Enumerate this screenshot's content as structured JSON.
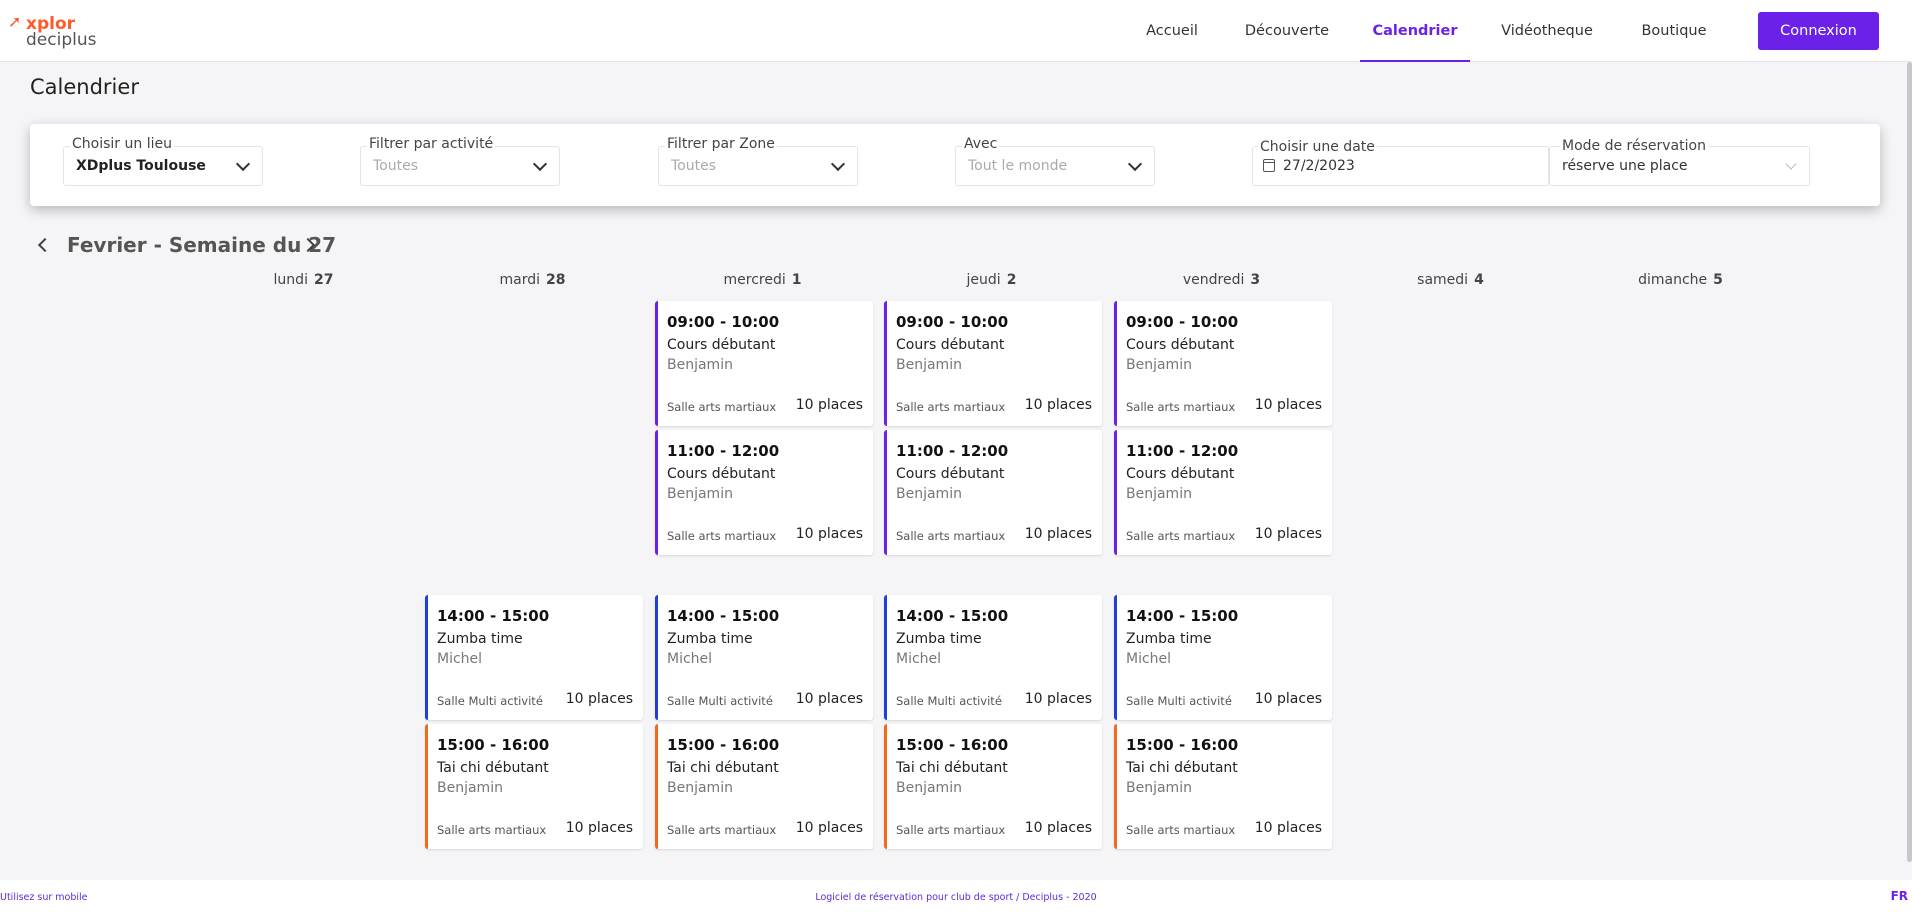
{
  "brand": {
    "top": "xplor",
    "bottom": "deciplus",
    "accent": "#6b21e8",
    "logo_color": "#ff5a2a"
  },
  "nav": {
    "items": [
      {
        "label": "Accueil",
        "active": false
      },
      {
        "label": "Découverte",
        "active": false
      },
      {
        "label": "Calendrier",
        "active": true
      },
      {
        "label": "Vidéotheque",
        "active": false
      },
      {
        "label": "Boutique",
        "active": false
      }
    ],
    "login": "Connexion"
  },
  "page_title": "Calendrier",
  "filters": {
    "lieu": {
      "label": "Choisir un lieu",
      "value": "XDplus Toulouse"
    },
    "activite": {
      "label": "Filtrer par activité",
      "value": "Toutes"
    },
    "zone": {
      "label": "Filtrer par Zone",
      "value": "Toutes"
    },
    "avec": {
      "label": "Avec",
      "value": "Tout le monde"
    },
    "date": {
      "label": "Choisir une date",
      "value": "27/2/2023"
    },
    "mode": {
      "label": "Mode de réservation",
      "value": "réserve une place"
    }
  },
  "week": {
    "title": "Fevrier - Semaine du 27",
    "days": [
      {
        "name": "lundi",
        "num": "27"
      },
      {
        "name": "mardi",
        "num": "28"
      },
      {
        "name": "mercredi",
        "num": "1"
      },
      {
        "name": "jeudi",
        "num": "2"
      },
      {
        "name": "vendredi",
        "num": "3"
      },
      {
        "name": "samedi",
        "num": "4"
      },
      {
        "name": "dimanche",
        "num": "5"
      }
    ]
  },
  "activity_colors": {
    "Cours débutant": "#6b21e8",
    "Zumba time": "#1f3fd6",
    "Tai chi débutant": "#f26a1b"
  },
  "events": {
    "mercredi": [
      {
        "time": "09:00 - 10:00",
        "name": "Cours débutant",
        "coach": "Benjamin",
        "room": "Salle arts martiaux",
        "places": "10 places"
      },
      {
        "time": "11:00 - 12:00",
        "name": "Cours débutant",
        "coach": "Benjamin",
        "room": "Salle arts martiaux",
        "places": "10 places"
      },
      {
        "time": "14:00 - 15:00",
        "name": "Zumba time",
        "coach": "Michel",
        "room": "Salle Multi activité",
        "places": "10 places"
      },
      {
        "time": "15:00 - 16:00",
        "name": "Tai chi débutant",
        "coach": "Benjamin",
        "room": "Salle arts martiaux",
        "places": "10 places"
      }
    ],
    "jeudi": [
      {
        "time": "09:00 - 10:00",
        "name": "Cours débutant",
        "coach": "Benjamin",
        "room": "Salle arts martiaux",
        "places": "10 places"
      },
      {
        "time": "11:00 - 12:00",
        "name": "Cours débutant",
        "coach": "Benjamin",
        "room": "Salle arts martiaux",
        "places": "10 places"
      },
      {
        "time": "14:00 - 15:00",
        "name": "Zumba time",
        "coach": "Michel",
        "room": "Salle Multi activité",
        "places": "10 places"
      },
      {
        "time": "15:00 - 16:00",
        "name": "Tai chi débutant",
        "coach": "Benjamin",
        "room": "Salle arts martiaux",
        "places": "10 places"
      }
    ],
    "vendredi": [
      {
        "time": "09:00 - 10:00",
        "name": "Cours débutant",
        "coach": "Benjamin",
        "room": "Salle arts martiaux",
        "places": "10 places"
      },
      {
        "time": "11:00 - 12:00",
        "name": "Cours débutant",
        "coach": "Benjamin",
        "room": "Salle arts martiaux",
        "places": "10 places"
      },
      {
        "time": "14:00 - 15:00",
        "name": "Zumba time",
        "coach": "Michel",
        "room": "Salle Multi activité",
        "places": "10 places"
      },
      {
        "time": "15:00 - 16:00",
        "name": "Tai chi débutant",
        "coach": "Benjamin",
        "room": "Salle arts martiaux",
        "places": "10 places"
      }
    ],
    "mardi": [
      {
        "time": "14:00 - 15:00",
        "name": "Zumba time",
        "coach": "Michel",
        "room": "Salle Multi activité",
        "places": "10 places"
      },
      {
        "time": "15:00 - 16:00",
        "name": "Tai chi débutant",
        "coach": "Benjamin",
        "room": "Salle arts martiaux",
        "places": "10 places"
      }
    ]
  },
  "footer": {
    "mobile": "Utilisez sur mobile",
    "software": "Logiciel de réservation pour club de sport / Deciplus - 2020",
    "lang": "FR"
  }
}
